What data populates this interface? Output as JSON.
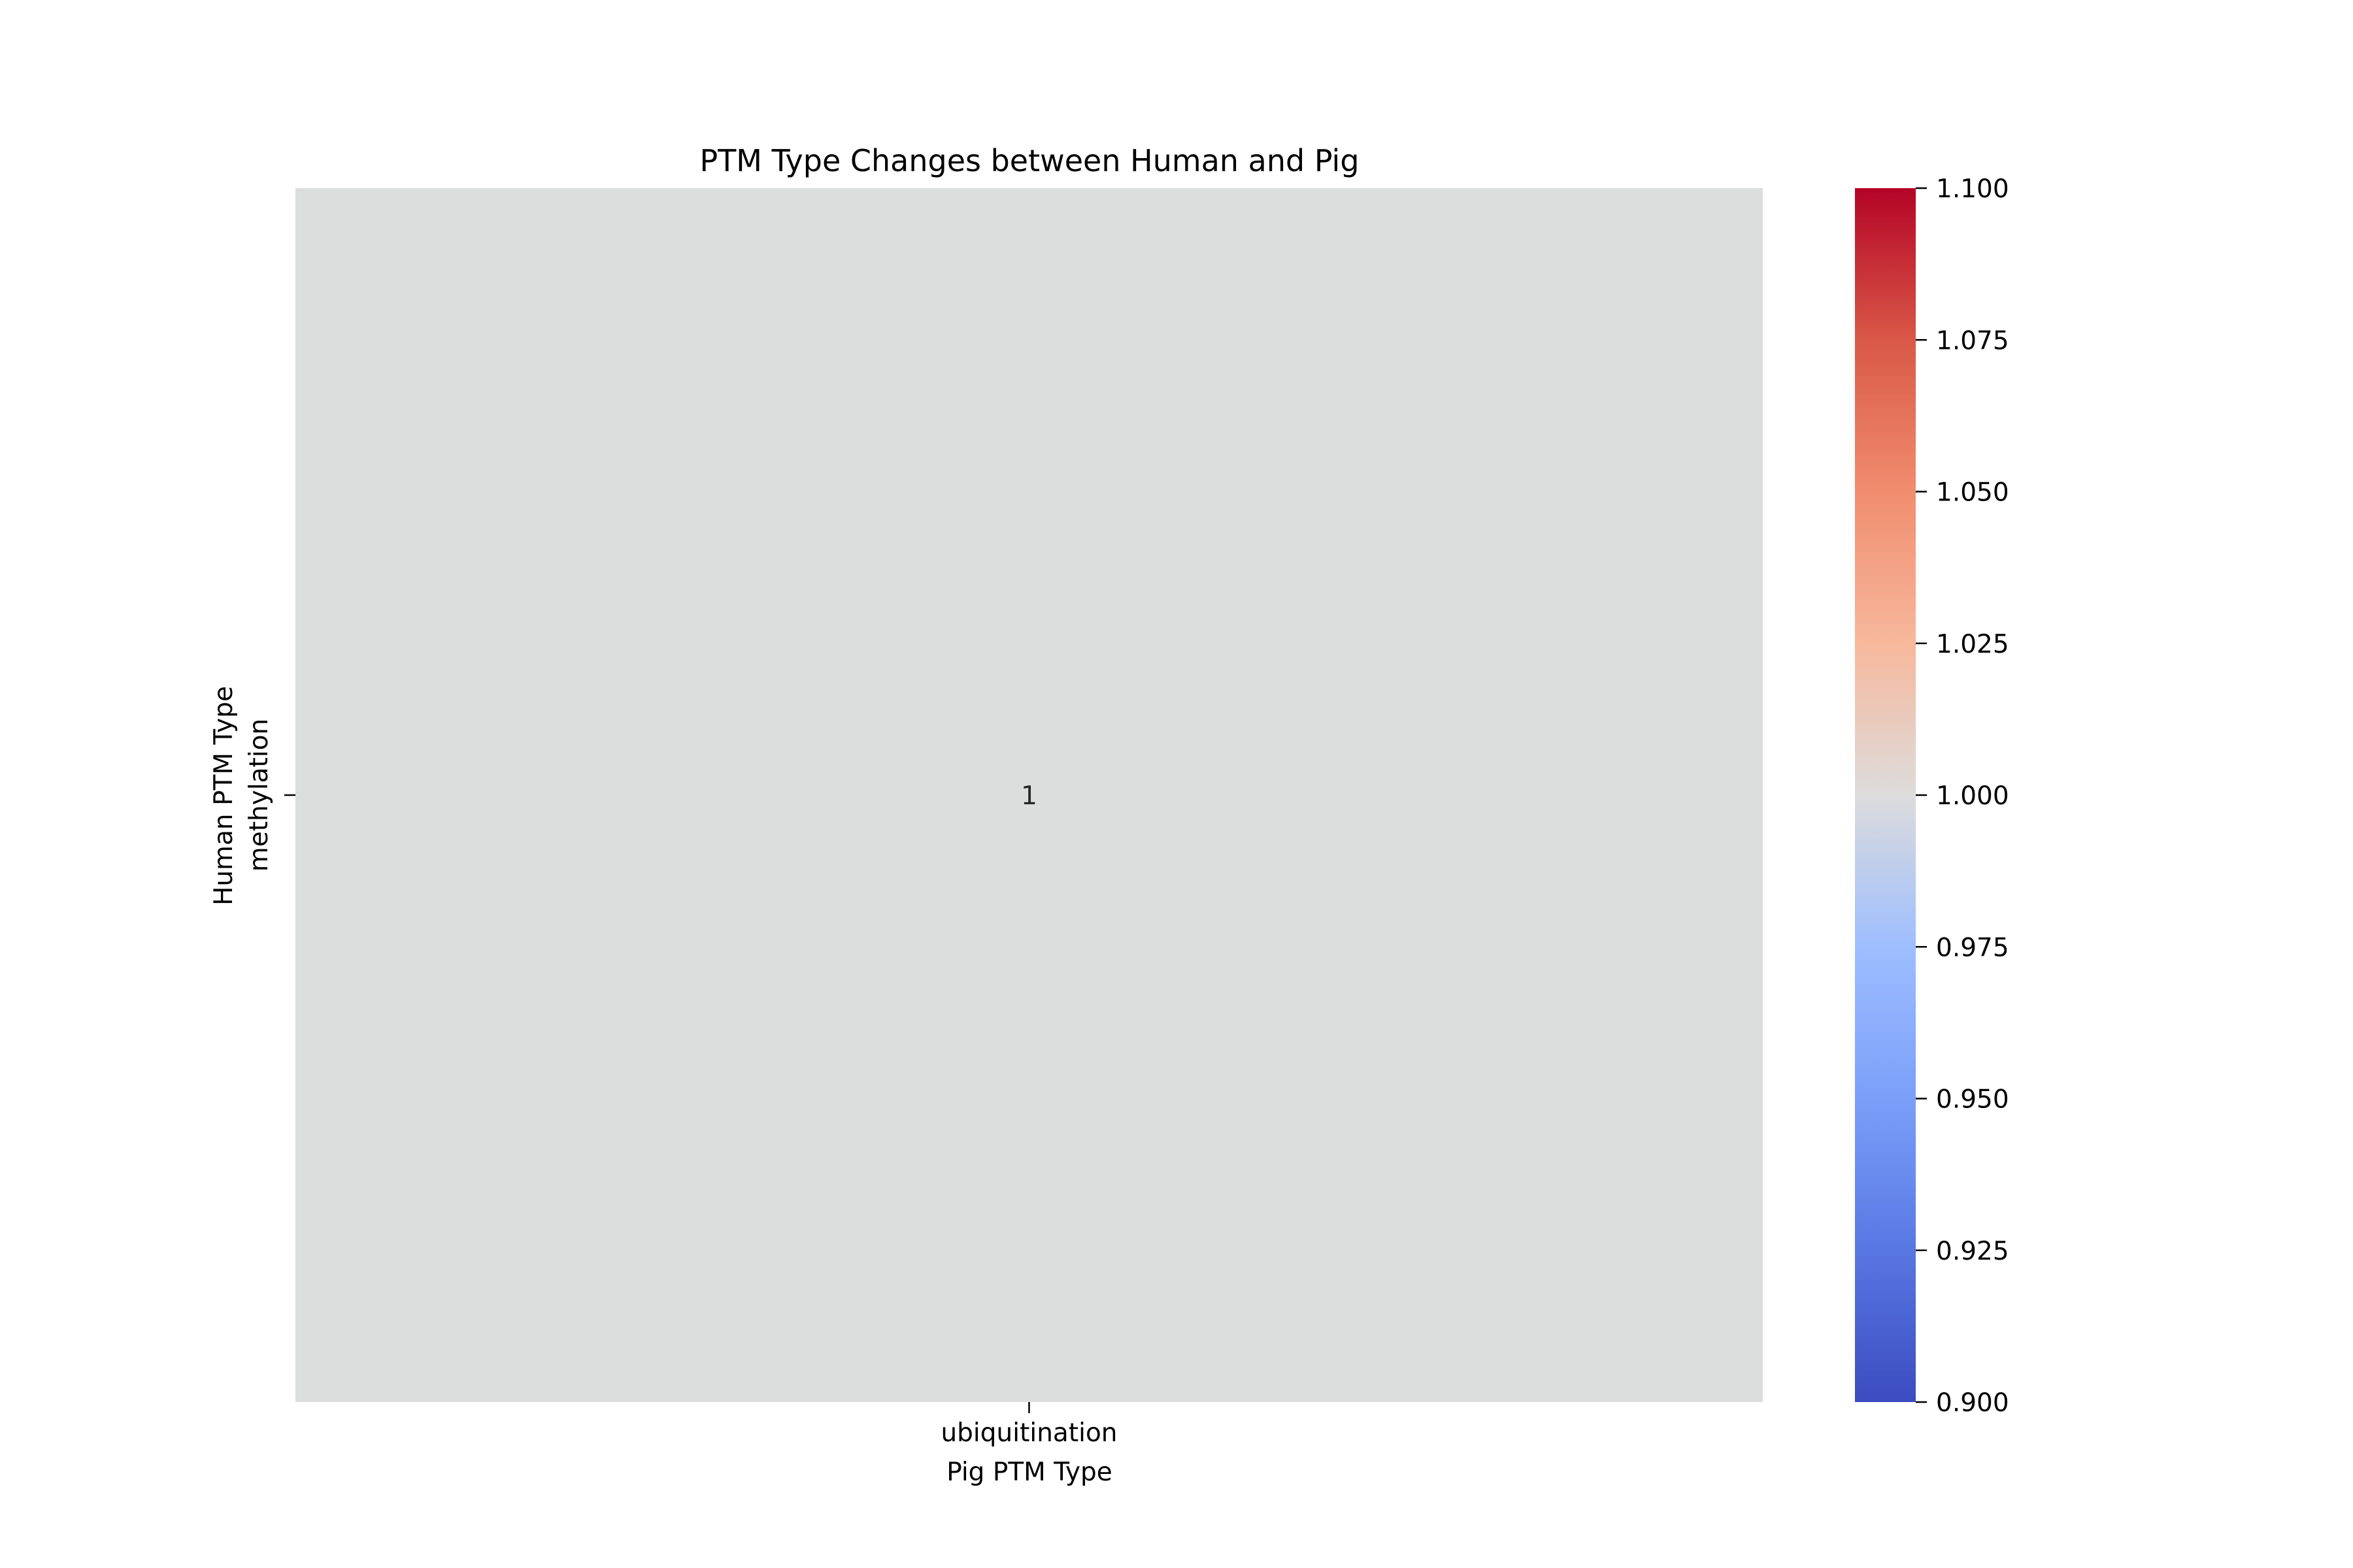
{
  "chart_data": {
    "type": "heatmap",
    "title": "PTM Type Changes between Human and Pig",
    "xlabel": "Pig PTM Type",
    "ylabel": "Human PTM Type",
    "x_categories": [
      "ubiquitination"
    ],
    "y_categories": [
      "methylation"
    ],
    "values": [
      [
        1
      ]
    ],
    "annotations": [
      [
        "1"
      ]
    ],
    "colormap": "coolwarm",
    "cell_color": "#dcdddd",
    "colorbar": {
      "range": [
        0.9,
        1.1
      ],
      "ticks": [
        "0.900",
        "0.925",
        "0.950",
        "0.975",
        "1.000",
        "1.025",
        "1.050",
        "1.075",
        "1.100"
      ],
      "stops": [
        {
          "value": 0.9,
          "color": "#3b4cc0"
        },
        {
          "value": 0.925,
          "color": "#5977e3"
        },
        {
          "value": 0.95,
          "color": "#7b9ff9"
        },
        {
          "value": 0.975,
          "color": "#9ebeff"
        },
        {
          "value": 1.0,
          "color": "#dddcdc"
        },
        {
          "value": 1.025,
          "color": "#f7b89c"
        },
        {
          "value": 1.05,
          "color": "#f18d6f"
        },
        {
          "value": 1.075,
          "color": "#d95847"
        },
        {
          "value": 1.1,
          "color": "#b40426"
        }
      ]
    }
  }
}
